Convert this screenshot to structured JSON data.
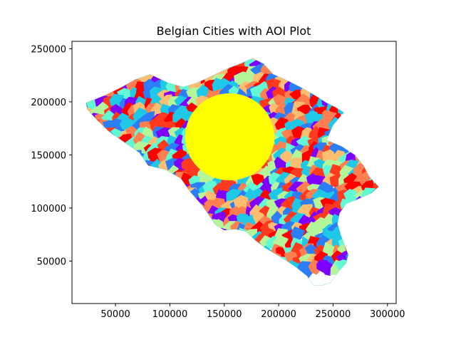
{
  "chart_data": {
    "type": "map",
    "title": "Belgian Cities with AOI Plot",
    "xlabel": "",
    "ylabel": "",
    "xlim": [
      10000,
      308000
    ],
    "ylim": [
      10000,
      257000
    ],
    "xticks": [
      50000,
      100000,
      150000,
      200000,
      250000,
      300000
    ],
    "yticks": [
      50000,
      100000,
      150000,
      200000,
      250000
    ],
    "xtick_labels": [
      "50000",
      "100000",
      "150000",
      "200000",
      "250000",
      "300000"
    ],
    "ytick_labels": [
      "50000",
      "100000",
      "150000",
      "200000",
      "250000"
    ],
    "grid": false,
    "colormap": "rainbow",
    "palette": [
      "#8000ff",
      "#2c7ef7",
      "#1ec8e6",
      "#62f8d4",
      "#b4f59a",
      "#fdbf6f",
      "#ff7f50",
      "#ff3a1f",
      "#ff0000"
    ],
    "aoi": {
      "shape": "circle",
      "center": [
        155000,
        167000
      ],
      "radius": 41000,
      "color": "#ffff00"
    },
    "boundary": [
      [
        23000,
        199000
      ],
      [
        40000,
        206000
      ],
      [
        56000,
        214000
      ],
      [
        68000,
        221000
      ],
      [
        82000,
        226000
      ],
      [
        98000,
        218000
      ],
      [
        112000,
        214000
      ],
      [
        125000,
        218000
      ],
      [
        138000,
        224000
      ],
      [
        152000,
        231000
      ],
      [
        165000,
        236000
      ],
      [
        176000,
        241000
      ],
      [
        186000,
        236000
      ],
      [
        195000,
        226000
      ],
      [
        206000,
        221000
      ],
      [
        218000,
        215000
      ],
      [
        232000,
        207000
      ],
      [
        244000,
        199000
      ],
      [
        252000,
        195000
      ],
      [
        260000,
        190000
      ],
      [
        250000,
        178000
      ],
      [
        244000,
        164000
      ],
      [
        258000,
        158000
      ],
      [
        270000,
        150000
      ],
      [
        278000,
        140000
      ],
      [
        283000,
        130000
      ],
      [
        292000,
        120000
      ],
      [
        285000,
        114000
      ],
      [
        272000,
        108000
      ],
      [
        262000,
        104000
      ],
      [
        256000,
        95000
      ],
      [
        254000,
        85000
      ],
      [
        258000,
        72000
      ],
      [
        264000,
        56000
      ],
      [
        262000,
        48000
      ],
      [
        255000,
        40000
      ],
      [
        248000,
        30000
      ],
      [
        240000,
        27000
      ],
      [
        232000,
        27000
      ],
      [
        226000,
        36000
      ],
      [
        215000,
        45000
      ],
      [
        200000,
        55000
      ],
      [
        188000,
        62000
      ],
      [
        178000,
        70000
      ],
      [
        170000,
        78000
      ],
      [
        160000,
        80000
      ],
      [
        150000,
        79000
      ],
      [
        142000,
        84000
      ],
      [
        138000,
        90000
      ],
      [
        130000,
        102000
      ],
      [
        118000,
        116000
      ],
      [
        110000,
        128000
      ],
      [
        96000,
        136000
      ],
      [
        80000,
        140000
      ],
      [
        72000,
        152000
      ],
      [
        58000,
        162000
      ],
      [
        44000,
        172000
      ],
      [
        32000,
        184000
      ],
      [
        24000,
        193000
      ]
    ]
  }
}
